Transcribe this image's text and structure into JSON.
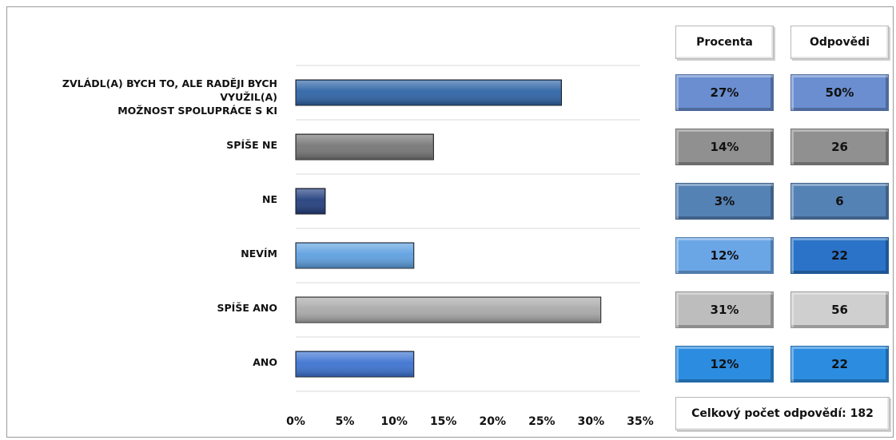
{
  "chart_data": {
    "type": "bar",
    "orientation": "horizontal",
    "categories": [
      "ZVLÁDL(A) BYCH TO, ALE RADĚJI BYCH VYUŽIL(A)\nMOŽNOST SPOLUPRÁCE S KI",
      "SPÍŠE NE",
      "NE",
      "NEVÍM",
      "SPÍŠE ANO",
      "ANO"
    ],
    "values": [
      27,
      14,
      3,
      12,
      31,
      12
    ],
    "value_unit": "%",
    "xlim": [
      0,
      35
    ],
    "xticks": [
      "0%",
      "5%",
      "10%",
      "15%",
      "20%",
      "25%",
      "30%",
      "35%"
    ],
    "xtick_values": [
      0,
      5,
      10,
      15,
      20,
      25,
      30,
      35
    ],
    "bar_colors": [
      "#2e64a6",
      "#767676",
      "#233f7e",
      "#5ea0e0",
      "#aaaaaa",
      "#3d73d1"
    ],
    "grid": "horizontal separators",
    "legend": "none"
  },
  "table": {
    "headers": {
      "percent": "Procenta",
      "answers": "Odpovědi"
    },
    "rows": [
      {
        "percent": "27%",
        "answers": "50%",
        "percent_color": "#6a8ed0",
        "answers_color": "#6a8ed0"
      },
      {
        "percent": "14%",
        "answers": "26",
        "percent_color": "#909090",
        "answers_color": "#909090"
      },
      {
        "percent": "3%",
        "answers": "6",
        "percent_color": "#5582b4",
        "answers_color": "#5582b4"
      },
      {
        "percent": "12%",
        "answers": "22",
        "percent_color": "#6aa6e6",
        "answers_color": "#2a73c8"
      },
      {
        "percent": "31%",
        "answers": "56",
        "percent_color": "#bdbdbd",
        "answers_color": "#cfcfcf"
      },
      {
        "percent": "12%",
        "answers": "22",
        "percent_color": "#2c8ce0",
        "answers_color": "#2c8ce0"
      }
    ],
    "total_label": "Celkový počet odpovědí: 182"
  }
}
